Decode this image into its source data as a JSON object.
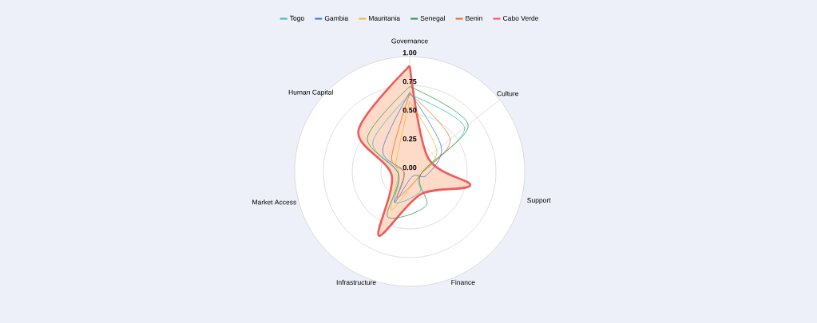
{
  "chart_data": {
    "type": "radar",
    "categories": [
      "Governance",
      "Culture",
      "Support",
      "Finance",
      "Infrastructure",
      "Market Access",
      "Human Capital"
    ],
    "series": [
      {
        "name": "Togo",
        "color": "#3dbdc0",
        "values": [
          0.67,
          0.61,
          0.1,
          0.2,
          0.3,
          0.1,
          0.41
        ]
      },
      {
        "name": "Gambia",
        "color": "#3b7de0",
        "values": [
          0.69,
          0.35,
          0.15,
          0.05,
          0.3,
          0.05,
          0.3
        ]
      },
      {
        "name": "Mauritania",
        "color": "#f5b82e",
        "values": [
          0.61,
          0.3,
          0.1,
          0.1,
          0.37,
          0.1,
          0.15
        ]
      },
      {
        "name": "Senegal",
        "color": "#2e9e4f",
        "values": [
          0.74,
          0.65,
          0.1,
          0.33,
          0.44,
          0.1,
          0.47
        ]
      },
      {
        "name": "Benin",
        "color": "#f06d1e",
        "values": [
          0.68,
          0.45,
          0.1,
          0.1,
          0.25,
          0.05,
          0.2
        ]
      },
      {
        "name": "Cabo Verde",
        "color": "#f05a5a",
        "type": "area",
        "values": [
          0.92,
          0.2,
          0.54,
          0.22,
          0.62,
          0.16,
          0.57
        ]
      }
    ],
    "ylim": [
      0,
      1
    ],
    "yticks": [
      {
        "value": 0,
        "label": "0.00"
      },
      {
        "value": 0.25,
        "label": "0.25"
      },
      {
        "value": 0.5,
        "label": "0.50"
      },
      {
        "value": 0.75,
        "label": "0.75"
      },
      {
        "value": 1,
        "label": "1.00"
      }
    ],
    "grid": true,
    "legend": "top",
    "marker": "none"
  }
}
